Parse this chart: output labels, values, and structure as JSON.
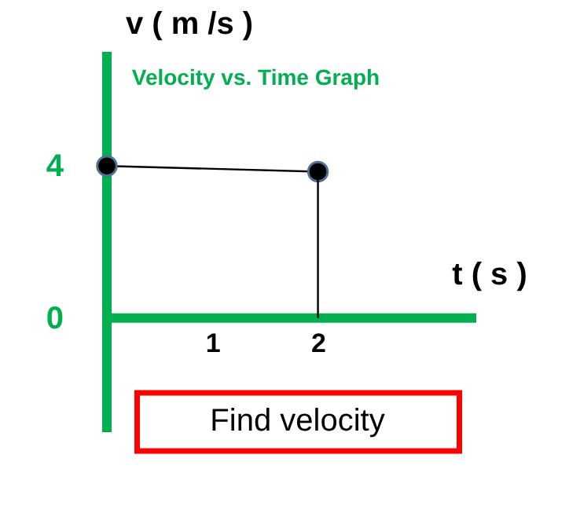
{
  "chart_data": {
    "type": "line",
    "title": "Velocity vs. Time Graph",
    "xlabel": "t ( s )",
    "ylabel": "v ( m /s )",
    "xlim": [
      0,
      3.5
    ],
    "ylim": [
      -3,
      7
    ],
    "x": [
      0,
      2
    ],
    "xticks": [
      1,
      2
    ],
    "yticks": [
      0,
      4
    ],
    "grid": false,
    "series": [
      {
        "color": "#000000",
        "values": [
          4,
          3.85
        ],
        "marker": "circle"
      },
      {
        "color": "#000000",
        "x": [
          2,
          2
        ],
        "values": [
          0,
          3.85
        ],
        "marker": "none"
      }
    ],
    "annotations": [
      "Find velocity"
    ]
  }
}
